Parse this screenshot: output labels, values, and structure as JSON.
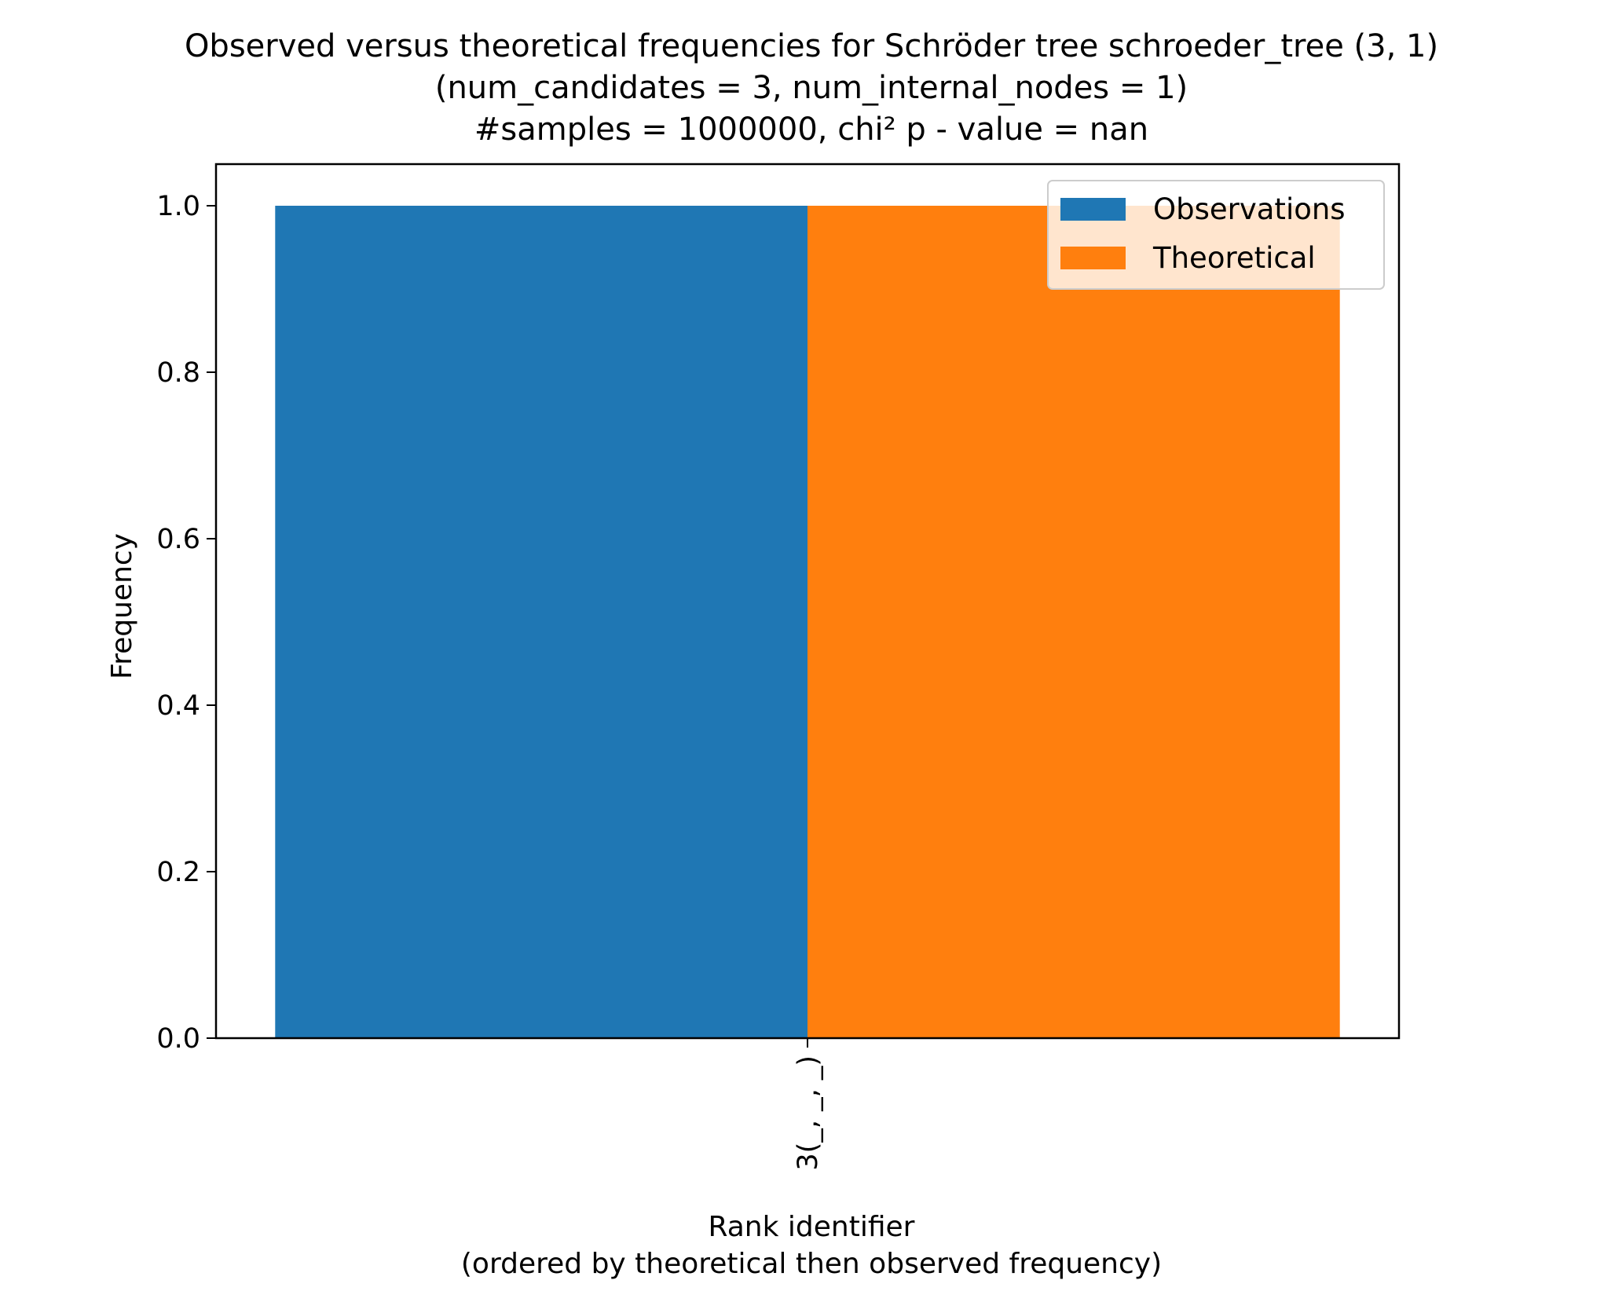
{
  "chart_data": {
    "type": "bar",
    "title_lines": [
      "Observed versus theoretical frequencies for Schröder tree schroeder_tree (3, 1)",
      "(num_candidates = 3, num_internal_nodes = 1)",
      "#samples = 1000000, chi² p - value = nan"
    ],
    "xlabel_lines": [
      "Rank identifier",
      "(ordered by theoretical then observed frequency)"
    ],
    "ylabel": "Frequency",
    "categories": [
      "3(_, _, _)"
    ],
    "series": [
      {
        "name": "Observations",
        "values": [
          1.0
        ],
        "color": "#1f77b4"
      },
      {
        "name": "Theoretical",
        "values": [
          1.0
        ],
        "color": "#ff7f0e"
      }
    ],
    "ylim": [
      0,
      1.05
    ],
    "yticks": [
      0.0,
      0.2,
      0.4,
      0.6,
      0.8,
      1.0
    ],
    "ytick_labels": [
      "0.0",
      "0.2",
      "0.4",
      "0.6",
      "0.8",
      "1.0"
    ],
    "xtick_rotation": 90,
    "grid": false,
    "legend_position": "top-right"
  }
}
